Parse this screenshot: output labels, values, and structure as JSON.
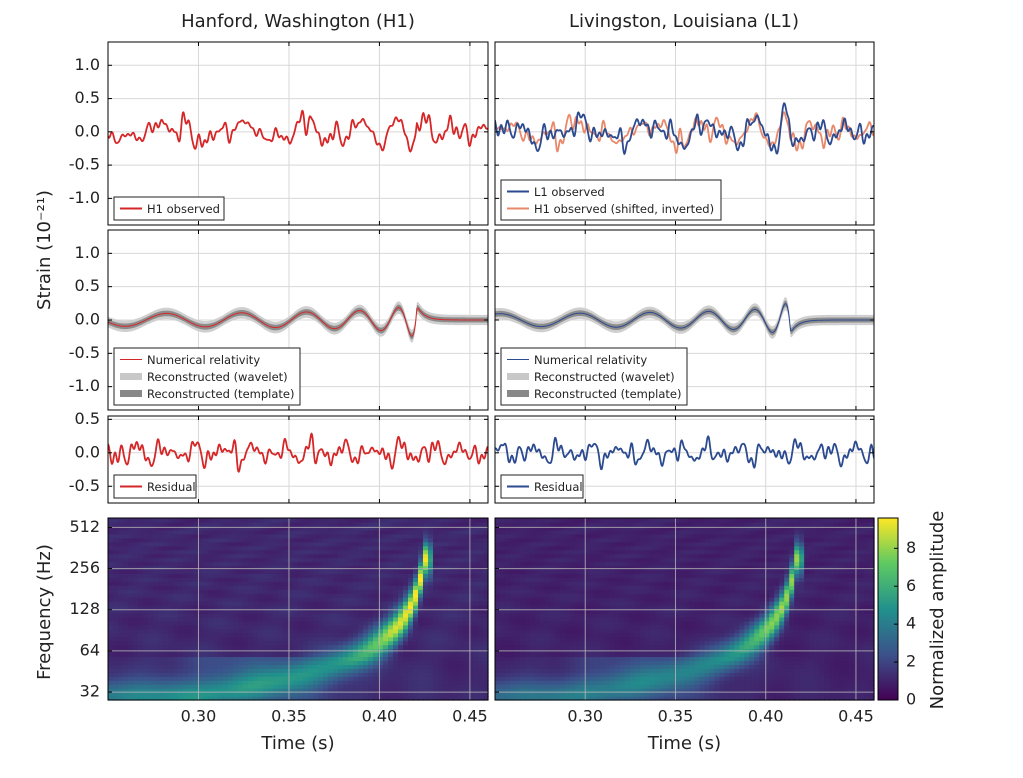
{
  "chart_data": [
    {
      "type": "line",
      "id": "h1-observed",
      "title": "Hanford, Washington (H1)",
      "ylabel": "Strain (10⁻²¹)",
      "xlim": [
        0.25,
        0.46
      ],
      "ylim": [
        -1.4,
        1.35
      ],
      "yticks": [
        1.0,
        0.5,
        0.0,
        -0.5,
        -1.0
      ],
      "ytick_labels": [
        "1.0",
        "0.5",
        "0.0",
        "-0.5",
        "-1.0"
      ],
      "series": [
        {
          "name": "H1 observed",
          "color": "#d62728"
        }
      ]
    },
    {
      "type": "line",
      "id": "l1-observed",
      "title": "Livingston, Louisiana (L1)",
      "xlim": [
        0.25,
        0.46
      ],
      "ylim": [
        -1.4,
        1.35
      ],
      "series": [
        {
          "name": "L1 observed",
          "color": "#2c4a8f"
        },
        {
          "name": "H1 observed (shifted, inverted)",
          "color": "#e8896b"
        }
      ]
    },
    {
      "type": "line",
      "id": "h1-reconstruction",
      "xlim": [
        0.25,
        0.46
      ],
      "ylim": [
        -1.35,
        1.35
      ],
      "yticks": [
        1.0,
        0.5,
        0.0,
        -0.5,
        -1.0
      ],
      "ytick_labels": [
        "1.0",
        "0.5",
        "0.0",
        "-0.5",
        "-1.0"
      ],
      "series": [
        {
          "name": "Numerical relativity",
          "color": "#d62728"
        },
        {
          "name": "Reconstructed (wavelet)",
          "color": "#cccccc"
        },
        {
          "name": "Reconstructed (template)",
          "color": "#888888"
        }
      ]
    },
    {
      "type": "line",
      "id": "l1-reconstruction",
      "xlim": [
        0.25,
        0.46
      ],
      "ylim": [
        -1.35,
        1.35
      ],
      "series": [
        {
          "name": "Numerical relativity",
          "color": "#2c4a8f"
        },
        {
          "name": "Reconstructed (wavelet)",
          "color": "#cccccc"
        },
        {
          "name": "Reconstructed (template)",
          "color": "#888888"
        }
      ]
    },
    {
      "type": "line",
      "id": "h1-residual",
      "xlim": [
        0.25,
        0.46
      ],
      "ylim": [
        -0.75,
        0.55
      ],
      "yticks": [
        0.5,
        0.0,
        -0.5
      ],
      "ytick_labels": [
        "0.5",
        "0.0",
        "-0.5"
      ],
      "series": [
        {
          "name": "Residual",
          "color": "#d62728"
        }
      ]
    },
    {
      "type": "line",
      "id": "l1-residual",
      "xlim": [
        0.25,
        0.46
      ],
      "ylim": [
        -0.75,
        0.55
      ],
      "series": [
        {
          "name": "Residual",
          "color": "#2c4a8f"
        }
      ]
    },
    {
      "type": "heatmap",
      "id": "h1-spectrogram",
      "xlabel": "Time (s)",
      "ylabel": "Frequency (Hz)",
      "xlim": [
        0.25,
        0.46
      ],
      "xticks": [
        0.3,
        0.35,
        0.4,
        0.45
      ],
      "xtick_labels": [
        "0.30",
        "0.35",
        "0.40",
        "0.45"
      ],
      "yscale": "log2",
      "ylim": [
        28,
        600
      ],
      "yticks": [
        512,
        256,
        128,
        64,
        32
      ],
      "ytick_labels": [
        "512",
        "256",
        "128",
        "64",
        "32"
      ],
      "peak_amplitude": 9.5
    },
    {
      "type": "heatmap",
      "id": "l1-spectrogram",
      "xlabel": "Time (s)",
      "xlim": [
        0.25,
        0.46
      ],
      "xticks": [
        0.3,
        0.35,
        0.4,
        0.45
      ],
      "xtick_labels": [
        "0.30",
        "0.35",
        "0.40",
        "0.45"
      ],
      "yscale": "log2",
      "ylim": [
        28,
        600
      ],
      "peak_amplitude": 8.0
    }
  ],
  "colorbar": {
    "label": "Normalized amplitude",
    "range": [
      0,
      9.6
    ],
    "ticks": [
      8,
      6,
      4,
      2,
      0
    ],
    "tick_labels": [
      "8",
      "6",
      "4",
      "2",
      "0"
    ]
  }
}
